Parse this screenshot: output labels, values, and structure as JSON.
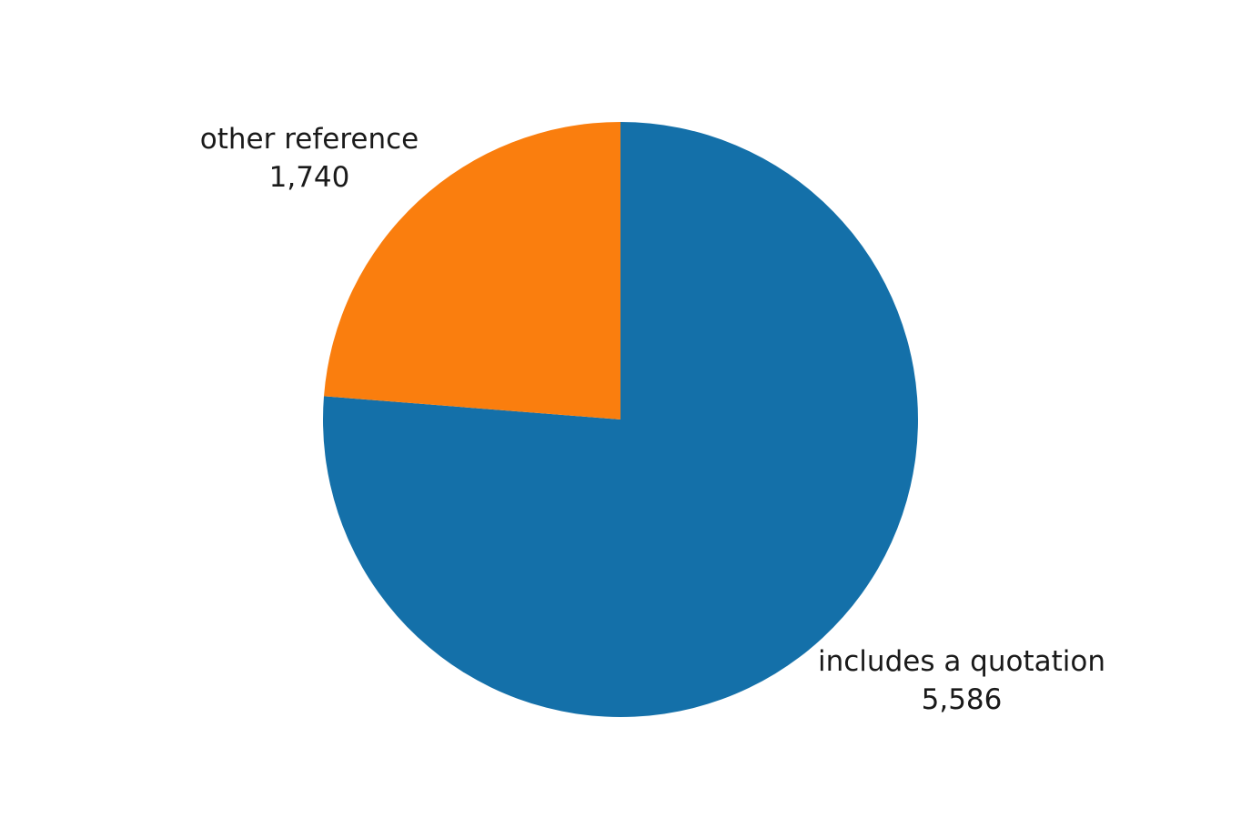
{
  "chart_data": {
    "type": "pie",
    "title": "",
    "start_angle_deg": 0,
    "direction": "clockwise",
    "slices": [
      {
        "label": "includes a quotation",
        "value": 5586,
        "value_label": "5,586",
        "color": "#1470a9"
      },
      {
        "label": "other reference",
        "value": 1740,
        "value_label": "1,740",
        "color": "#fa7e0e"
      }
    ]
  }
}
